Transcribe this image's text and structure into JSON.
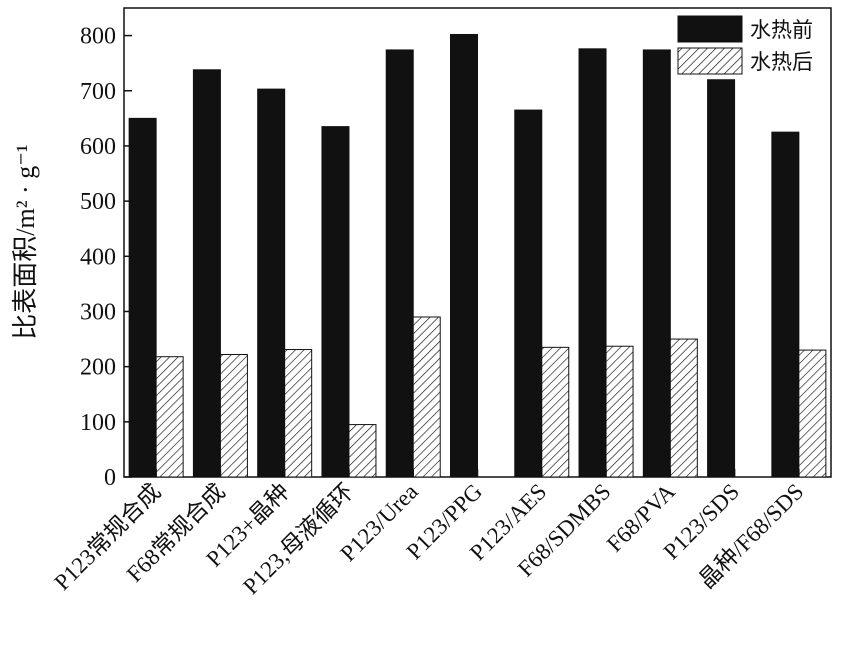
{
  "chart_data": {
    "type": "bar",
    "title": "",
    "xlabel": "",
    "ylabel": "比表面积/m² · g⁻¹",
    "ylim": [
      0,
      850
    ],
    "yticks": [
      0,
      100,
      200,
      300,
      400,
      500,
      600,
      700,
      800
    ],
    "grid": false,
    "legend_position": "top-right",
    "categories": [
      "P123常规合成",
      "F68常规合成",
      "P123+晶种",
      "P123,母液循环",
      "P123/Urea",
      "P123/PPG",
      "P123/AES",
      "F68/SDMBS",
      "F68/PVA",
      "P123/SDS",
      "晶种/F68/SDS"
    ],
    "series": [
      {
        "name": "水热前",
        "fill": "#111111",
        "pattern": "solid",
        "values": [
          650,
          738,
          703,
          635,
          774,
          802,
          665,
          776,
          774,
          720,
          625
        ]
      },
      {
        "name": "水热后",
        "fill": "#ffffff",
        "pattern": "hatch",
        "values": [
          218,
          222,
          231,
          95,
          290,
          0,
          235,
          237,
          250,
          0,
          230
        ]
      }
    ]
  }
}
